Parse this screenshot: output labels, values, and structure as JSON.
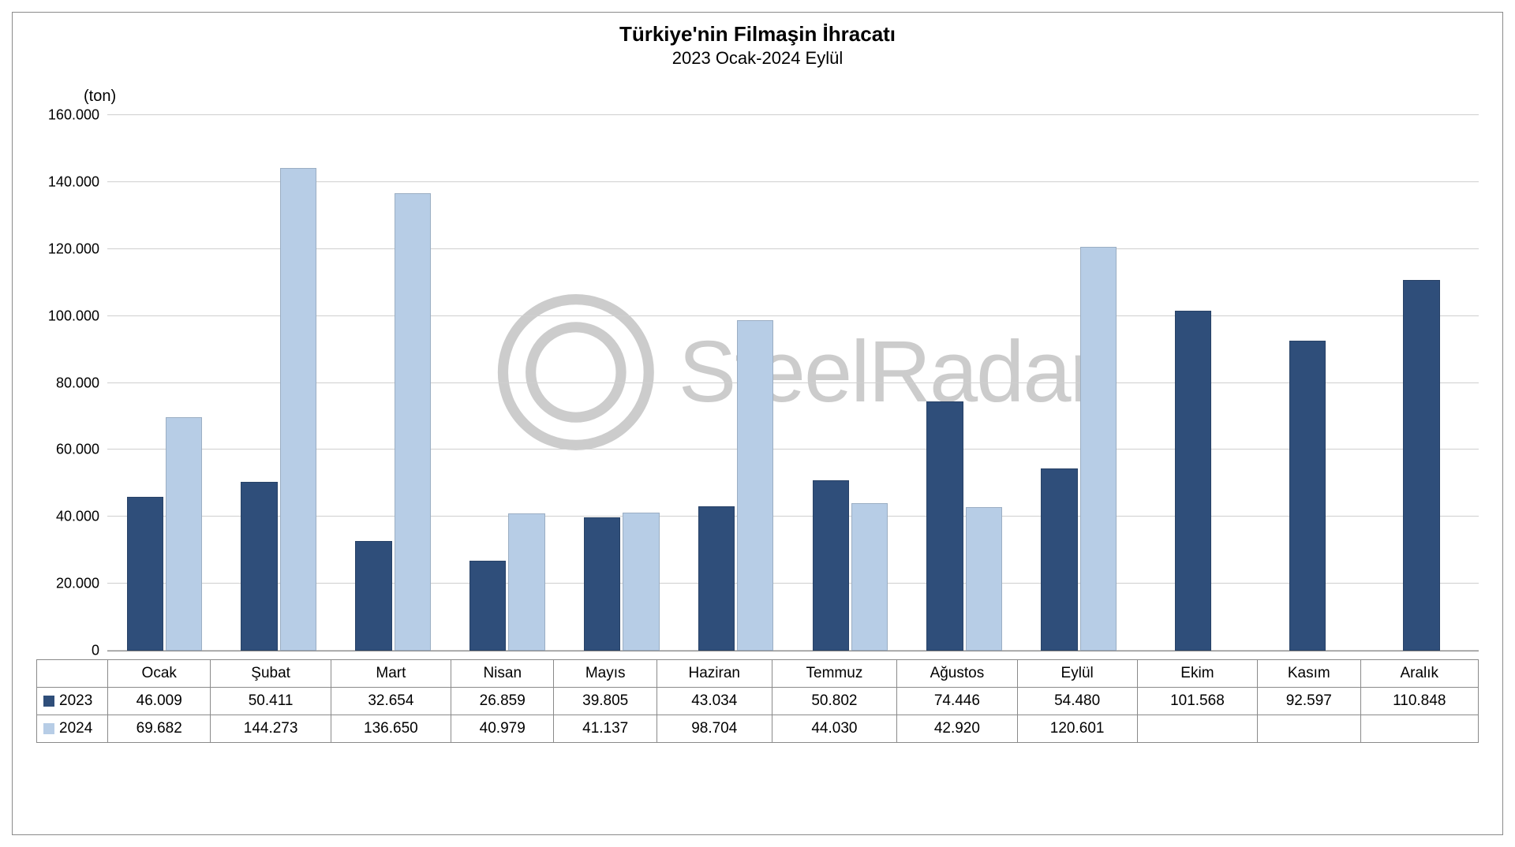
{
  "chart": {
    "type": "bar",
    "title": "Türkiye'nin Filmaşin İhracatı",
    "subtitle": "2023 Ocak-2024 Eylül",
    "y_unit_label": "(ton)",
    "title_fontsize": 26,
    "subtitle_fontsize": 22,
    "ylim_max": 160000,
    "ylim_min": 0,
    "ytick_step": 20000,
    "yticks": [
      "0",
      "20.000",
      "40.000",
      "60.000",
      "80.000",
      "100.000",
      "120.000",
      "140.000",
      "160.000"
    ],
    "grid_color": "#cfcfcf",
    "border_color": "#8a8a8a",
    "background_color": "#ffffff",
    "categories": [
      "Ocak",
      "Şubat",
      "Mart",
      "Nisan",
      "Mayıs",
      "Haziran",
      "Temmuz",
      "Ağustos",
      "Eylül",
      "Ekim",
      "Kasım",
      "Aralık"
    ],
    "series": [
      {
        "name": "2023",
        "color": "#2f4e7a",
        "values": [
          46009,
          50411,
          32654,
          26859,
          39805,
          43034,
          50802,
          74446,
          54480,
          101568,
          92597,
          110848
        ],
        "display": [
          "46.009",
          "50.411",
          "32.654",
          "26.859",
          "39.805",
          "43.034",
          "50.802",
          "74.446",
          "54.480",
          "101.568",
          "92.597",
          "110.848"
        ]
      },
      {
        "name": "2024",
        "color": "#b7cde6",
        "values": [
          69682,
          144273,
          136650,
          40979,
          41137,
          98704,
          44030,
          42920,
          120601,
          null,
          null,
          null
        ],
        "display": [
          "69.682",
          "144.273",
          "136.650",
          "40.979",
          "41.137",
          "98.704",
          "44.030",
          "42.920",
          "120.601",
          "",
          "",
          ""
        ]
      }
    ],
    "watermark_text": "SteelRadar",
    "watermark_color": "#cccccc"
  }
}
